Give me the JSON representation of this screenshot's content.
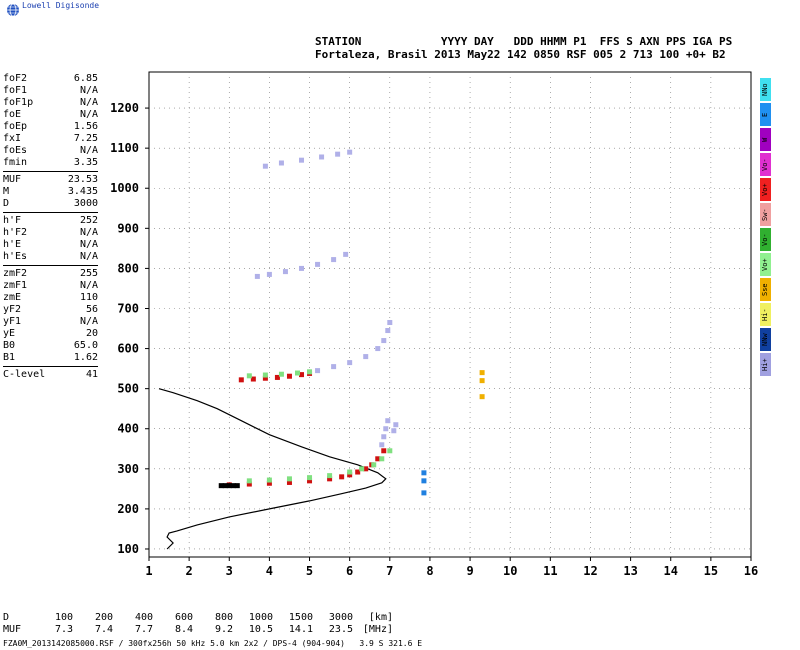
{
  "brand": "Lowell Digisonde",
  "header": {
    "line1": "STATION            YYYY DAY   DDD HHMM P1  FFS S AXN PPS IGA PS",
    "line2": "Fortaleza, Brasil 2013 May22 142 0850 RSF 005 2 713 100 +0+ B2"
  },
  "params": [
    {
      "name": "foF2",
      "value": "6.85"
    },
    {
      "name": "foF1",
      "value": "N/A"
    },
    {
      "name": "foF1p",
      "value": "N/A"
    },
    {
      "name": "foE",
      "value": "N/A"
    },
    {
      "name": "foEp",
      "value": "1.56"
    },
    {
      "name": "fxI",
      "value": "7.25"
    },
    {
      "name": "foEs",
      "value": "N/A"
    },
    {
      "name": "fmin",
      "value": "3.35"
    },
    {
      "sep": true
    },
    {
      "name": "MUF",
      "value": "23.53"
    },
    {
      "name": "M",
      "value": "3.435"
    },
    {
      "name": "D",
      "value": "3000"
    },
    {
      "sep": true
    },
    {
      "name": "h'F",
      "value": "252"
    },
    {
      "name": "h'F2",
      "value": "N/A"
    },
    {
      "name": "h'E",
      "value": "N/A"
    },
    {
      "name": "h'Es",
      "value": "N/A"
    },
    {
      "sep": true
    },
    {
      "name": "zmF2",
      "value": "255"
    },
    {
      "name": "zmF1",
      "value": "N/A"
    },
    {
      "name": "zmE",
      "value": "110"
    },
    {
      "name": "yF2",
      "value": "56"
    },
    {
      "name": "yF1",
      "value": "N/A"
    },
    {
      "name": "yE",
      "value": "20"
    },
    {
      "name": "B0",
      "value": "65.0"
    },
    {
      "name": "B1",
      "value": "1.62"
    },
    {
      "sep": true
    },
    {
      "name": "C-level",
      "value": "41"
    }
  ],
  "legend": [
    {
      "label": "NNo",
      "color": "#40e0f0"
    },
    {
      "label": "E",
      "color": "#2090f0"
    },
    {
      "label": "W",
      "color": "#a000c0"
    },
    {
      "label": "Vo-",
      "color": "#e030d0"
    },
    {
      "label": "Vo+",
      "color": "#f02020"
    },
    {
      "label": "Sw-",
      "color": "#f0a0a0"
    },
    {
      "label": "Vo-",
      "color": "#30b030"
    },
    {
      "label": "Vo+",
      "color": "#90f090"
    },
    {
      "label": "Sse",
      "color": "#f0b000"
    },
    {
      "label": "Hi-",
      "color": "#f0f060"
    },
    {
      "label": "NNw",
      "color": "#1040a0"
    },
    {
      "label": "Hi+",
      "color": "#a0a0e0"
    }
  ],
  "distance_table": {
    "rows": [
      [
        "D",
        "100",
        "200",
        "400",
        "600",
        "800",
        "1000",
        "1500",
        "3000",
        "[km]"
      ],
      [
        "MUF",
        "7.3",
        "7.4",
        "7.7",
        "8.4",
        "9.2",
        "10.5",
        "14.1",
        "23.5",
        "[MHz]"
      ]
    ]
  },
  "footer": "FZA0M_2013142085000.RSF / 300fx256h 50 kHz 5.0 km 2x2 / DPS-4 (904-904)   3.9 S 321.6 E",
  "chart_data": {
    "type": "scatter",
    "xlim": [
      1,
      16
    ],
    "ylim": [
      80,
      1290
    ],
    "xticks": [
      1,
      2,
      3,
      4,
      5,
      6,
      7,
      8,
      9,
      10,
      11,
      12,
      13,
      14,
      15,
      16
    ],
    "yticks": [
      100,
      200,
      300,
      400,
      500,
      600,
      700,
      800,
      900,
      1000,
      1100,
      1200
    ],
    "grid": true,
    "series": [
      {
        "id": "o-trace-1",
        "color": "#d01010",
        "points": [
          [
            3.0,
            260
          ],
          [
            3.5,
            262
          ],
          [
            4.0,
            264
          ],
          [
            4.5,
            266
          ],
          [
            5.0,
            270
          ],
          [
            5.5,
            275
          ],
          [
            5.8,
            280
          ],
          [
            6.0,
            285
          ],
          [
            6.2,
            292
          ],
          [
            6.4,
            300
          ],
          [
            6.55,
            310
          ],
          [
            6.7,
            325
          ],
          [
            6.85,
            345
          ]
        ]
      },
      {
        "id": "x-trace-1",
        "color": "#80e080",
        "points": [
          [
            3.5,
            270
          ],
          [
            4.0,
            272
          ],
          [
            4.5,
            275
          ],
          [
            5.0,
            278
          ],
          [
            5.5,
            283
          ],
          [
            6.0,
            292
          ],
          [
            6.3,
            300
          ],
          [
            6.6,
            310
          ],
          [
            6.8,
            325
          ],
          [
            7.0,
            345
          ]
        ]
      },
      {
        "id": "noise-low",
        "color": "#000000",
        "points": [
          [
            2.8,
            258
          ],
          [
            2.9,
            258
          ],
          [
            3.0,
            258
          ],
          [
            3.1,
            258
          ],
          [
            3.2,
            258
          ]
        ]
      },
      {
        "id": "o-trace-2",
        "color": "#d01010",
        "points": [
          [
            3.3,
            522
          ],
          [
            3.6,
            524
          ],
          [
            3.9,
            526
          ],
          [
            4.2,
            528
          ],
          [
            4.5,
            531
          ],
          [
            4.8,
            535
          ],
          [
            5.0,
            538
          ]
        ]
      },
      {
        "id": "x-trace-2",
        "color": "#80e080",
        "points": [
          [
            3.5,
            532
          ],
          [
            3.9,
            534
          ],
          [
            4.3,
            536
          ],
          [
            4.7,
            539
          ],
          [
            5.0,
            542
          ]
        ]
      },
      {
        "id": "hop2-tail",
        "color": "#b0b0e8",
        "points": [
          [
            5.2,
            545
          ],
          [
            5.6,
            555
          ],
          [
            6.0,
            565
          ],
          [
            6.4,
            580
          ],
          [
            6.7,
            600
          ],
          [
            6.85,
            620
          ],
          [
            6.95,
            645
          ],
          [
            7.0,
            665
          ]
        ]
      },
      {
        "id": "hop3",
        "color": "#b0b0e8",
        "points": [
          [
            3.7,
            780
          ],
          [
            4.0,
            785
          ],
          [
            4.4,
            792
          ],
          [
            4.8,
            800
          ],
          [
            5.2,
            810
          ],
          [
            5.6,
            822
          ],
          [
            5.9,
            835
          ]
        ]
      },
      {
        "id": "hop4",
        "color": "#b0b0e8",
        "points": [
          [
            3.9,
            1055
          ],
          [
            4.3,
            1063
          ],
          [
            4.8,
            1070
          ],
          [
            5.3,
            1078
          ],
          [
            5.7,
            1085
          ],
          [
            6.0,
            1090
          ]
        ]
      },
      {
        "id": "high-trace",
        "color": "#b0b0e8",
        "points": [
          [
            6.8,
            360
          ],
          [
            6.85,
            380
          ],
          [
            6.9,
            400
          ],
          [
            6.95,
            420
          ],
          [
            7.1,
            395
          ],
          [
            7.15,
            410
          ]
        ]
      },
      {
        "id": "sporadic-9",
        "color": "#f0b000",
        "points": [
          [
            9.3,
            480
          ],
          [
            9.3,
            520
          ],
          [
            9.3,
            540
          ]
        ]
      },
      {
        "id": "sporadic-8",
        "color": "#2080e0",
        "points": [
          [
            7.85,
            240
          ],
          [
            7.85,
            270
          ],
          [
            7.85,
            290
          ]
        ]
      }
    ],
    "profile": {
      "color": "#000000",
      "points": [
        [
          1.45,
          100
        ],
        [
          1.6,
          115
        ],
        [
          1.45,
          130
        ],
        [
          1.5,
          140
        ],
        [
          1.7,
          145
        ],
        [
          2.2,
          160
        ],
        [
          3.0,
          180
        ],
        [
          4.0,
          200
        ],
        [
          5.0,
          220
        ],
        [
          5.8,
          238
        ],
        [
          6.4,
          252
        ],
        [
          6.8,
          265
        ],
        [
          6.9,
          275
        ],
        [
          6.7,
          290
        ],
        [
          6.2,
          310
        ],
        [
          5.5,
          330
        ],
        [
          4.8,
          355
        ],
        [
          4.0,
          385
        ],
        [
          3.3,
          420
        ],
        [
          2.7,
          450
        ],
        [
          2.2,
          470
        ],
        [
          1.6,
          490
        ],
        [
          1.25,
          500
        ]
      ]
    }
  }
}
